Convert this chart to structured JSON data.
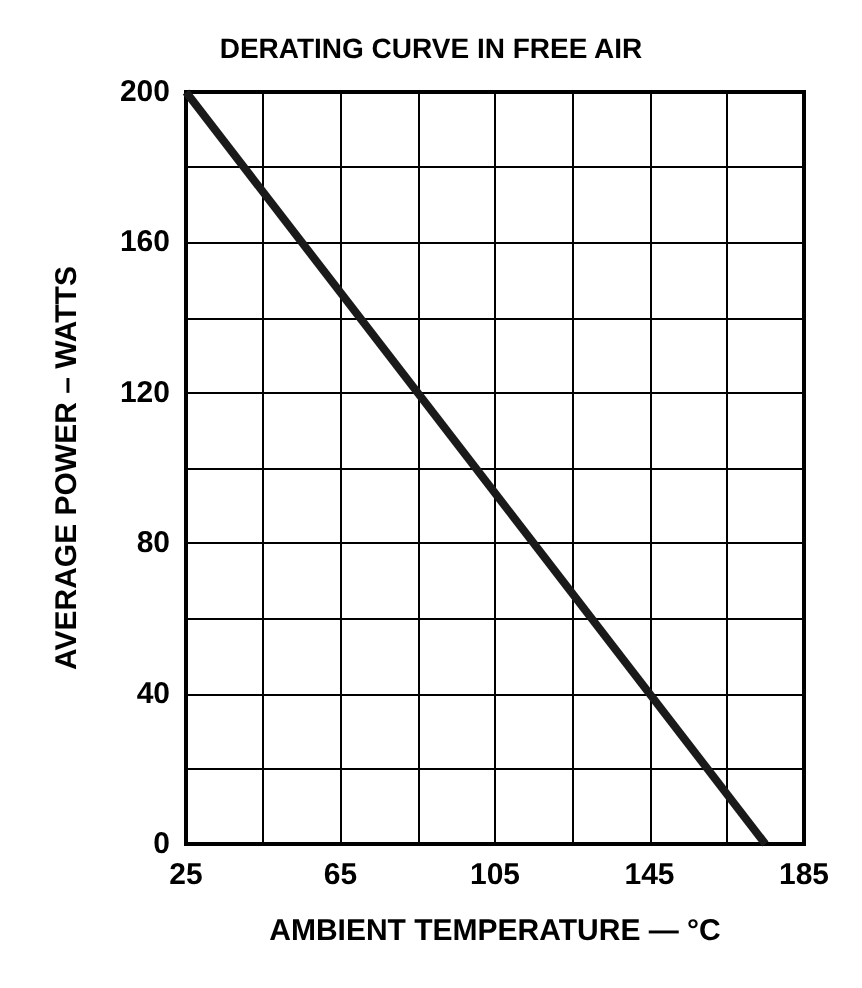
{
  "chart_data": {
    "type": "line",
    "title": "DERATING CURVE IN FREE AIR",
    "xlabel": "AMBIENT TEMPERATURE — °C",
    "ylabel": "AVERAGE POWER – WATTS",
    "x": [
      25,
      175
    ],
    "series": [
      {
        "color": "#1a1a1a",
        "values": [
          200,
          0
        ]
      }
    ],
    "xlim": [
      25,
      185
    ],
    "xticks": [
      25,
      {
        "value": 45,
        "label": null
      },
      65,
      {
        "value": 85,
        "label": null
      },
      105,
      {
        "value": 125,
        "label": null
      },
      145,
      {
        "value": 165,
        "label": null
      },
      185
    ],
    "ylim": [
      0,
      200
    ],
    "yticks": [
      0,
      {
        "value": 20,
        "label": null
      },
      40,
      {
        "value": 60,
        "label": null
      },
      80,
      {
        "value": 100,
        "label": null
      },
      120,
      {
        "value": 140,
        "label": null
      },
      160,
      {
        "value": 180,
        "label": null
      },
      200
    ],
    "grid": true,
    "marker": "none",
    "line_style": "solid"
  }
}
